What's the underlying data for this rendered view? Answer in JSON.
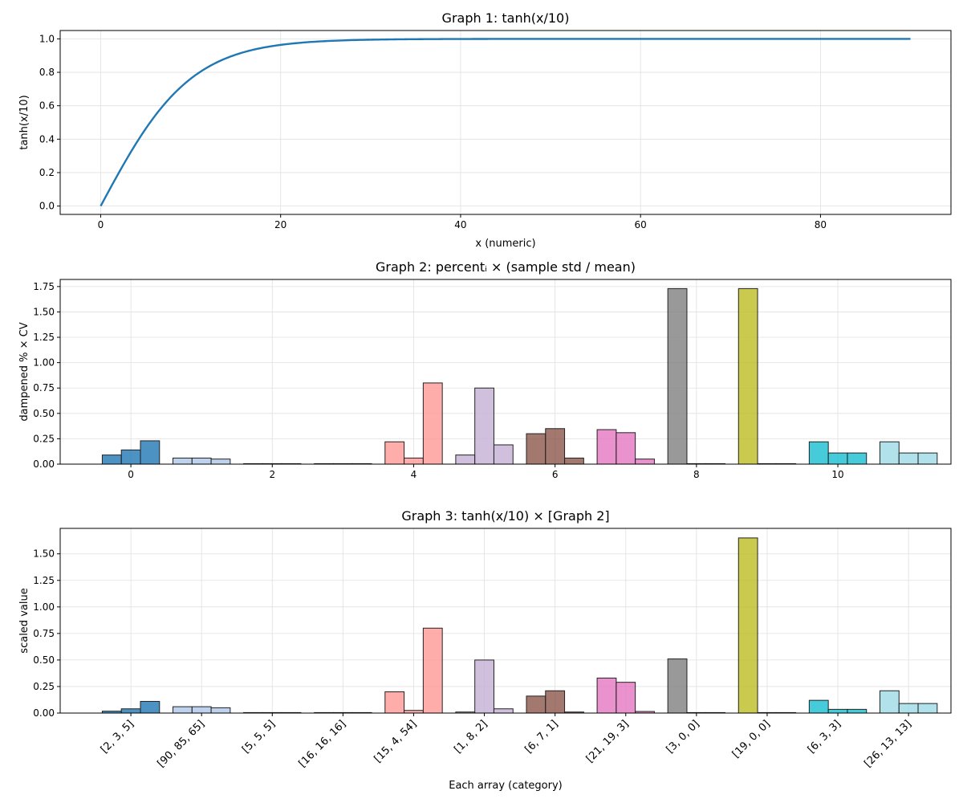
{
  "chart_data": [
    {
      "type": "line",
      "title": "Graph 1: tanh(x/10)",
      "xlabel": "x (numeric)",
      "ylabel": "tanh(x/10)",
      "xlim": [
        -4.5,
        94.5
      ],
      "ylim": [
        -0.05,
        1.05
      ],
      "xticks": [
        0,
        20,
        40,
        60,
        80
      ],
      "xtick_labels": [
        "0",
        "20",
        "40",
        "60",
        "80"
      ],
      "yticks": [
        0,
        0.2,
        0.4,
        0.6,
        0.8,
        1.0
      ],
      "ytick_labels": [
        "0.0",
        "0.2",
        "0.4",
        "0.6",
        "0.8",
        "1.0"
      ],
      "grid": true,
      "series": [
        {
          "name": "tanh(x/10)",
          "function": "tanh(x/10)",
          "x_range": [
            0,
            90
          ],
          "color": "#1f77b4"
        }
      ]
    },
    {
      "type": "bar",
      "title": "Graph 2: percentᵢ × (sample std / mean)",
      "xlabel": "",
      "ylabel": "dampened % × CV",
      "xlim": [
        -1.0,
        11.6
      ],
      "ylim": [
        0,
        1.82
      ],
      "xticks": [
        0,
        2,
        4,
        6,
        8,
        10
      ],
      "xtick_labels": [
        "0",
        "2",
        "4",
        "6",
        "8",
        "10"
      ],
      "yticks": [
        0,
        0.25,
        0.5,
        0.75,
        1.0,
        1.25,
        1.5,
        1.75
      ],
      "ytick_labels": [
        "0.00",
        "0.25",
        "0.50",
        "0.75",
        "1.00",
        "1.25",
        "1.50",
        "1.75"
      ],
      "grid": true,
      "bar_width": 0.27,
      "groups": [
        {
          "x": 0,
          "values": [
            0.09,
            0.14,
            0.23
          ]
        },
        {
          "x": 1,
          "values": [
            0.06,
            0.06,
            0.05
          ]
        },
        {
          "x": 2,
          "values": [
            0,
            0,
            0
          ]
        },
        {
          "x": 3,
          "values": [
            0,
            0,
            0
          ]
        },
        {
          "x": 4,
          "values": [
            0.22,
            0.06,
            0.8
          ]
        },
        {
          "x": 5,
          "values": [
            0.09,
            0.75,
            0.19
          ]
        },
        {
          "x": 6,
          "values": [
            0.3,
            0.35,
            0.06
          ]
        },
        {
          "x": 7,
          "values": [
            0.34,
            0.31,
            0.05
          ]
        },
        {
          "x": 8,
          "values": [
            1.73,
            0,
            0
          ]
        },
        {
          "x": 9,
          "values": [
            1.73,
            0,
            0
          ]
        },
        {
          "x": 10,
          "values": [
            0.22,
            0.11,
            0.11
          ]
        },
        {
          "x": 11,
          "values": [
            0.22,
            0.11,
            0.11
          ]
        }
      ]
    },
    {
      "type": "bar",
      "title": "Graph 3: tanh(x/10) × [Graph 2]",
      "xlabel": "Each array (category)",
      "ylabel": "scaled value",
      "xlim": [
        -1.0,
        11.6
      ],
      "ylim": [
        0,
        1.74
      ],
      "xticks": [
        0,
        1,
        2,
        3,
        4,
        5,
        6,
        7,
        8,
        9,
        10,
        11
      ],
      "xtick_labels": [
        "[2, 3, 5]",
        "[90, 85, 65]",
        "[5, 5, 5]",
        "[16, 16, 16]",
        "[15, 4, 54]",
        "[1, 8, 2]",
        "[6, 7, 1]",
        "[21, 19, 3]",
        "[3, 0, 0]",
        "[19, 0, 0]",
        "[6, 3, 3]",
        "[26, 13, 13]"
      ],
      "yticks": [
        0,
        0.25,
        0.5,
        0.75,
        1.0,
        1.25,
        1.5
      ],
      "ytick_labels": [
        "0.00",
        "0.25",
        "0.50",
        "0.75",
        "1.00",
        "1.25",
        "1.50"
      ],
      "grid": true,
      "bar_width": 0.27,
      "groups": [
        {
          "x": 0,
          "values": [
            0.018,
            0.04,
            0.11
          ]
        },
        {
          "x": 1,
          "values": [
            0.06,
            0.06,
            0.05
          ]
        },
        {
          "x": 2,
          "values": [
            0,
            0,
            0
          ]
        },
        {
          "x": 3,
          "values": [
            0,
            0,
            0
          ]
        },
        {
          "x": 4,
          "values": [
            0.2,
            0.025,
            0.8
          ]
        },
        {
          "x": 5,
          "values": [
            0.01,
            0.5,
            0.04
          ]
        },
        {
          "x": 6,
          "values": [
            0.16,
            0.21,
            0.01
          ]
        },
        {
          "x": 7,
          "values": [
            0.33,
            0.29,
            0.015
          ]
        },
        {
          "x": 8,
          "values": [
            0.51,
            0,
            0
          ]
        },
        {
          "x": 9,
          "values": [
            1.65,
            0,
            0
          ]
        },
        {
          "x": 10,
          "values": [
            0.12,
            0.035,
            0.035
          ]
        },
        {
          "x": 11,
          "values": [
            0.21,
            0.09,
            0.09
          ]
        }
      ]
    }
  ],
  "colors": {
    "line": "#1f77b4",
    "groups": [
      "#1f77b4",
      "#aec7e8",
      "#c5b0d5",
      "#bcbd22",
      "#ff9896",
      "#c5b0d5",
      "#8c564b",
      "#e377c2",
      "#7f7f7f",
      "#bcbd22",
      "#17becf",
      "#9edae5"
    ],
    "grid": "#e0e0e0",
    "bar_edge": "#222222"
  }
}
